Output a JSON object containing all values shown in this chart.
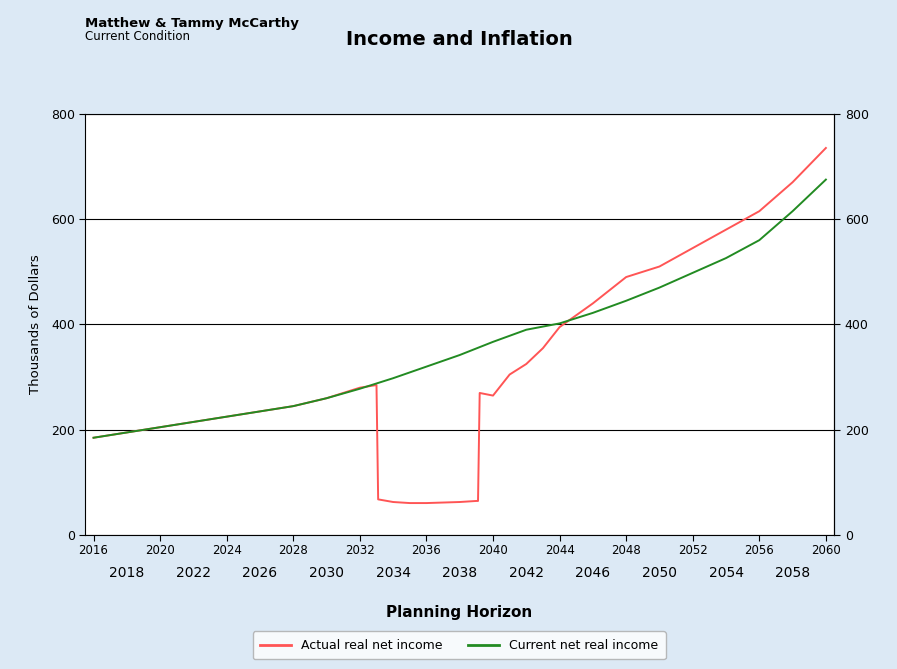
{
  "title": "Income and Inflation",
  "subtitle": "Current Condition",
  "name": "Matthew & Tammy McCarthy",
  "xlabel": "Planning Horizon",
  "ylabel": "Thousands of Dollars",
  "background_color": "#dce9f5",
  "plot_background": "#ffffff",
  "xlim": [
    2015.5,
    2060.5
  ],
  "ylim": [
    0,
    800
  ],
  "yticks": [
    0,
    200,
    400,
    600,
    800
  ],
  "xticks_row1": [
    2016,
    2020,
    2024,
    2028,
    2032,
    2036,
    2040,
    2044,
    2048,
    2052,
    2056,
    2060
  ],
  "xticks_row2": [
    2018,
    2022,
    2026,
    2030,
    2034,
    2038,
    2042,
    2046,
    2050,
    2054,
    2058
  ],
  "red_line_label": "Actual real net income",
  "green_line_label": "Current net real income",
  "red_color": "#ff5555",
  "green_color": "#228B22",
  "red_x": [
    2016,
    2018,
    2020,
    2022,
    2024,
    2026,
    2028,
    2030,
    2032,
    2033.0,
    2033.1,
    2034,
    2035,
    2036,
    2037,
    2038,
    2039,
    2039.1,
    2039.2,
    2040,
    2041,
    2042,
    2043,
    2044,
    2046,
    2048,
    2050,
    2052,
    2054,
    2056,
    2058,
    2060
  ],
  "red_y": [
    185,
    195,
    205,
    215,
    225,
    235,
    245,
    260,
    280,
    285,
    68,
    63,
    61,
    61,
    62,
    63,
    65,
    65,
    270,
    265,
    305,
    325,
    355,
    395,
    440,
    490,
    510,
    545,
    580,
    615,
    670,
    735
  ],
  "green_x": [
    2016,
    2018,
    2020,
    2022,
    2024,
    2026,
    2028,
    2030,
    2032,
    2034,
    2036,
    2038,
    2040,
    2042,
    2044,
    2046,
    2048,
    2050,
    2052,
    2054,
    2056,
    2058,
    2060
  ],
  "green_y": [
    185,
    195,
    205,
    215,
    225,
    235,
    245,
    260,
    278,
    298,
    320,
    342,
    367,
    390,
    402,
    422,
    445,
    470,
    498,
    526,
    560,
    615,
    675
  ]
}
